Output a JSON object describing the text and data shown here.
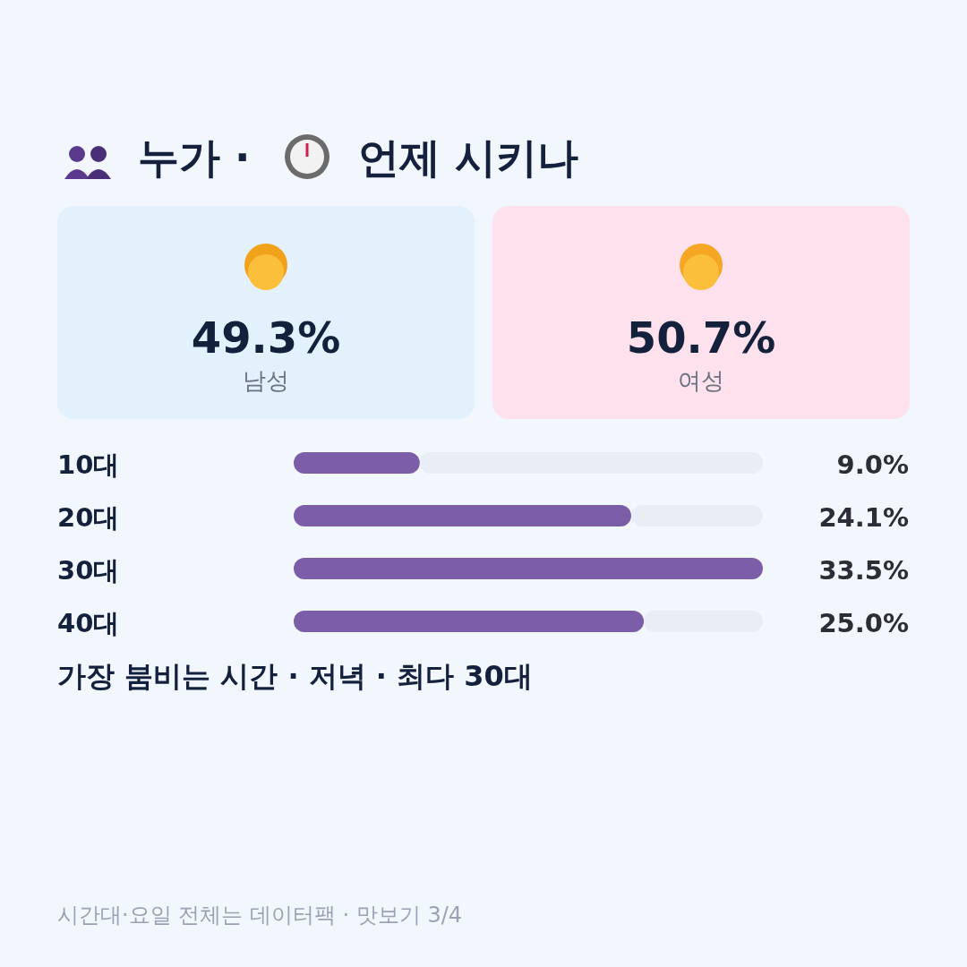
{
  "chart_data": [
    {
      "type": "other",
      "title": "누가 · 언제 시키나",
      "categories": [
        "남성",
        "여성"
      ],
      "values": [
        49.3,
        50.7
      ],
      "value_labels": [
        "49.3%",
        "50.7%"
      ],
      "colors": [
        "#e3f1fc",
        "#fde1ec"
      ]
    },
    {
      "type": "bar",
      "orientation": "horizontal",
      "categories": [
        "10대",
        "20대",
        "30대",
        "40대"
      ],
      "values": [
        9.0,
        24.1,
        33.5,
        25.0
      ],
      "value_labels": [
        "9.0%",
        "24.1%",
        "33.5%",
        "25.0%"
      ],
      "color": "#7b5ea7",
      "annotations": [
        "가장 붐비는 시간 · 저녁 · 최다 30대",
        "시간대·요일 전체는 데이터팩 · 맛보기 3/4"
      ]
    }
  ]
}
